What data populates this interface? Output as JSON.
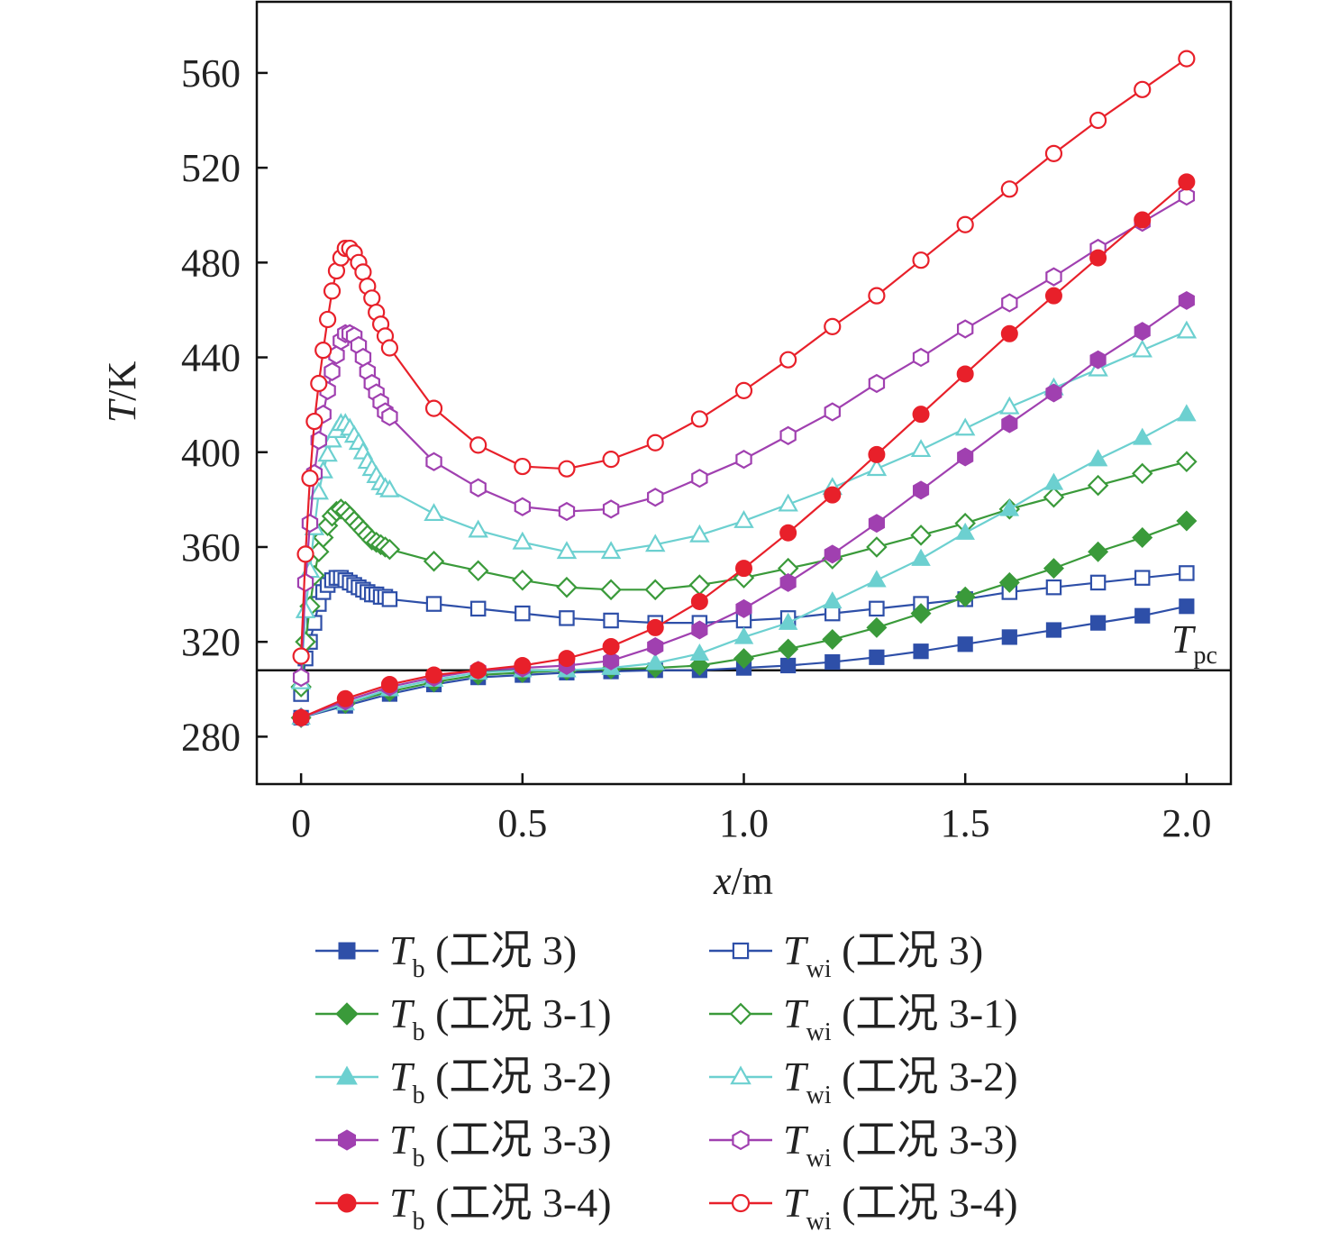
{
  "chart_data": {
    "type": "line",
    "xlabel": {
      "var": "x",
      "unit": "/m"
    },
    "ylabel": {
      "var": "T",
      "unit": "/K"
    },
    "xlim": [
      -0.1,
      2.1
    ],
    "ylim": [
      260,
      590
    ],
    "xticks": [
      0,
      0.5,
      1.0,
      1.5,
      2.0
    ],
    "xtick_labels": [
      "0",
      "0.5",
      "1.0",
      "1.5",
      "2.0"
    ],
    "yticks": [
      280,
      320,
      360,
      400,
      440,
      480,
      520,
      560
    ],
    "ytick_labels": [
      "280",
      "320",
      "360",
      "400",
      "440",
      "480",
      "520",
      "560"
    ],
    "grid": false,
    "legend_placement": "bottom",
    "reference_line": {
      "y": 308,
      "label_var": "T",
      "label_sub": "pc"
    },
    "x_tb": [
      0,
      0.1,
      0.2,
      0.3,
      0.4,
      0.5,
      0.6,
      0.7,
      0.8,
      0.9,
      1.0,
      1.1,
      1.2,
      1.3,
      1.4,
      1.5,
      1.6,
      1.7,
      1.8,
      1.9,
      2.0
    ],
    "x_twi": [
      0,
      0.01,
      0.02,
      0.03,
      0.04,
      0.05,
      0.06,
      0.07,
      0.08,
      0.09,
      0.1,
      0.11,
      0.12,
      0.13,
      0.14,
      0.15,
      0.16,
      0.17,
      0.18,
      0.19,
      0.2,
      0.3,
      0.4,
      0.5,
      0.6,
      0.7,
      0.8,
      0.9,
      1.0,
      1.1,
      1.2,
      1.3,
      1.4,
      1.5,
      1.6,
      1.7,
      1.8,
      1.9,
      2.0
    ],
    "series": [
      {
        "var": "T",
        "sub": "b",
        "case": " (工况 3)",
        "xkey": "x_tb",
        "color": "#2e4fa8",
        "marker": "square",
        "filled": true,
        "values": [
          288,
          293,
          298,
          302,
          305,
          306,
          307,
          307.5,
          308,
          308,
          309,
          310,
          311.5,
          313.5,
          316,
          319,
          322,
          325,
          328,
          331,
          335
        ]
      },
      {
        "var": "T",
        "sub": "wi",
        "case": " (工况 3)",
        "xkey": "x_twi",
        "color": "#2e4fa8",
        "marker": "square",
        "filled": false,
        "values": [
          298,
          313,
          320,
          328,
          336,
          341,
          344,
          346,
          347,
          347,
          346,
          345,
          344,
          343,
          342,
          341,
          340,
          340,
          339,
          339,
          338,
          336,
          334,
          332,
          330,
          329,
          328,
          328,
          329,
          330,
          332,
          334,
          336,
          338,
          341,
          343,
          345,
          347,
          349
        ]
      },
      {
        "var": "T",
        "sub": "b",
        "case": " (工况 3-1)",
        "xkey": "x_tb",
        "color": "#3a9a3a",
        "marker": "diamond",
        "filled": true,
        "values": [
          288,
          294,
          299,
          303,
          306,
          307,
          308,
          308.5,
          309,
          310,
          313,
          317,
          321,
          326,
          332,
          339,
          345,
          351,
          358,
          364,
          371
        ]
      },
      {
        "var": "T",
        "sub": "wi",
        "case": " (工况 3-1)",
        "xkey": "x_twi",
        "color": "#3a9a3a",
        "marker": "diamond",
        "filled": false,
        "values": [
          301,
          320,
          335,
          348,
          358,
          364,
          369,
          373,
          375,
          376,
          375,
          373,
          371,
          369,
          367,
          365,
          363,
          362,
          361,
          360,
          359,
          354,
          350,
          346,
          343,
          342,
          342,
          344,
          347,
          351,
          355,
          360,
          365,
          370,
          376,
          381,
          386,
          391,
          396
        ]
      },
      {
        "var": "T",
        "sub": "b",
        "case": " (工况 3-2)",
        "xkey": "x_tb",
        "color": "#6cd0d0",
        "marker": "triangle",
        "filled": true,
        "values": [
          288,
          294,
          300,
          304,
          307,
          308,
          308,
          309,
          311,
          315,
          322,
          328,
          337,
          346,
          355,
          366,
          376,
          387,
          397,
          406,
          416
        ]
      },
      {
        "var": "T",
        "sub": "wi",
        "case": " (工况 3-2)",
        "xkey": "x_twi",
        "color": "#6cd0d0",
        "marker": "triangle",
        "filled": false,
        "values": [
          303,
          333,
          350,
          368,
          383,
          392,
          399,
          405,
          409,
          412,
          412,
          410,
          407,
          404,
          400,
          396,
          393,
          390,
          387,
          385,
          384,
          374,
          367,
          362,
          358,
          358,
          361,
          365,
          371,
          378,
          385,
          393,
          401,
          410,
          419,
          427,
          435,
          443,
          451
        ]
      },
      {
        "var": "T",
        "sub": "b",
        "case": " (工况 3-3)",
        "xkey": "x_tb",
        "color": "#a040b0",
        "marker": "hexagon",
        "filled": true,
        "values": [
          288,
          295,
          301,
          305,
          308,
          309,
          310,
          312,
          318,
          325,
          334,
          345,
          357,
          370,
          384,
          398,
          412,
          425,
          439,
          451,
          464
        ]
      },
      {
        "var": "T",
        "sub": "wi",
        "case": " (工况 3-3)",
        "xkey": "x_twi",
        "color": "#a040b0",
        "marker": "hexagon",
        "filled": false,
        "values": [
          305,
          345,
          370,
          391,
          405,
          416,
          426,
          434,
          441,
          447,
          450,
          450,
          449,
          445,
          440,
          434,
          429,
          425,
          421,
          417,
          415,
          396,
          385,
          377,
          375,
          376,
          381,
          389,
          397,
          407,
          417,
          429,
          440,
          452,
          463,
          474,
          486,
          497,
          508
        ]
      },
      {
        "var": "T",
        "sub": "b",
        "case": " (工况 3-4)",
        "xkey": "x_tb",
        "color": "#e8202a",
        "marker": "circle",
        "filled": true,
        "values": [
          288,
          296,
          302,
          306,
          308,
          310,
          313,
          318,
          326,
          337,
          351,
          366,
          382,
          399,
          416,
          433,
          450,
          466,
          482,
          498,
          514
        ]
      },
      {
        "var": "T",
        "sub": "wi",
        "case": " (工况 3-4)",
        "xkey": "x_twi",
        "color": "#e8202a",
        "marker": "circle",
        "filled": false,
        "values": [
          314,
          357,
          389,
          413,
          429,
          443,
          456,
          468,
          476.5,
          482,
          486,
          486,
          484,
          480,
          476,
          470,
          465,
          459,
          454,
          449,
          444,
          418.5,
          403,
          394,
          393,
          397,
          404,
          414,
          426,
          439,
          453,
          466,
          481,
          496,
          511,
          526,
          540,
          553,
          566
        ]
      }
    ]
  }
}
